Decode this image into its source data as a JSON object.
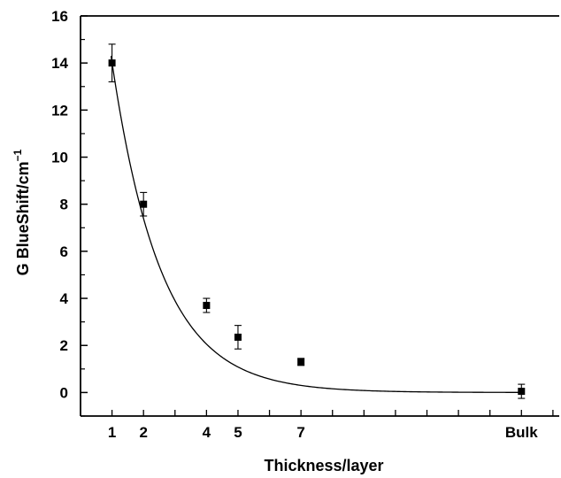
{
  "chart_data": {
    "type": "scatter",
    "xlabel": "Thickness/layer",
    "ylabel": "G BlueShift/cm",
    "ylabel_superscript": "−1",
    "ylim": [
      -1,
      16
    ],
    "yticks": [
      0,
      2,
      4,
      6,
      8,
      10,
      12,
      14,
      16
    ],
    "xticks": [
      {
        "pos": 1,
        "label": "1"
      },
      {
        "pos": 2,
        "label": "2"
      },
      {
        "pos": 4,
        "label": "4"
      },
      {
        "pos": 5,
        "label": "5"
      },
      {
        "pos": 7,
        "label": "7"
      },
      {
        "pos": 14,
        "label": "Bulk"
      }
    ],
    "xlim": [
      0,
      15.2
    ],
    "grid": false,
    "points": [
      {
        "x": 1,
        "label": "1",
        "y": 14.0,
        "err": 0.8
      },
      {
        "x": 2,
        "label": "2",
        "y": 8.0,
        "err": 0.5
      },
      {
        "x": 4,
        "label": "4",
        "y": 3.7,
        "err": 0.3
      },
      {
        "x": 5,
        "label": "5",
        "y": 2.35,
        "err": 0.5
      },
      {
        "x": 7,
        "label": "7",
        "y": 1.3,
        "err": 0.15
      },
      {
        "x": 14,
        "label": "Bulk",
        "y": 0.05,
        "err": 0.3
      }
    ],
    "fit": {
      "type": "exponential-decay",
      "amplitude": 26.6,
      "decay": 0.64
    }
  }
}
